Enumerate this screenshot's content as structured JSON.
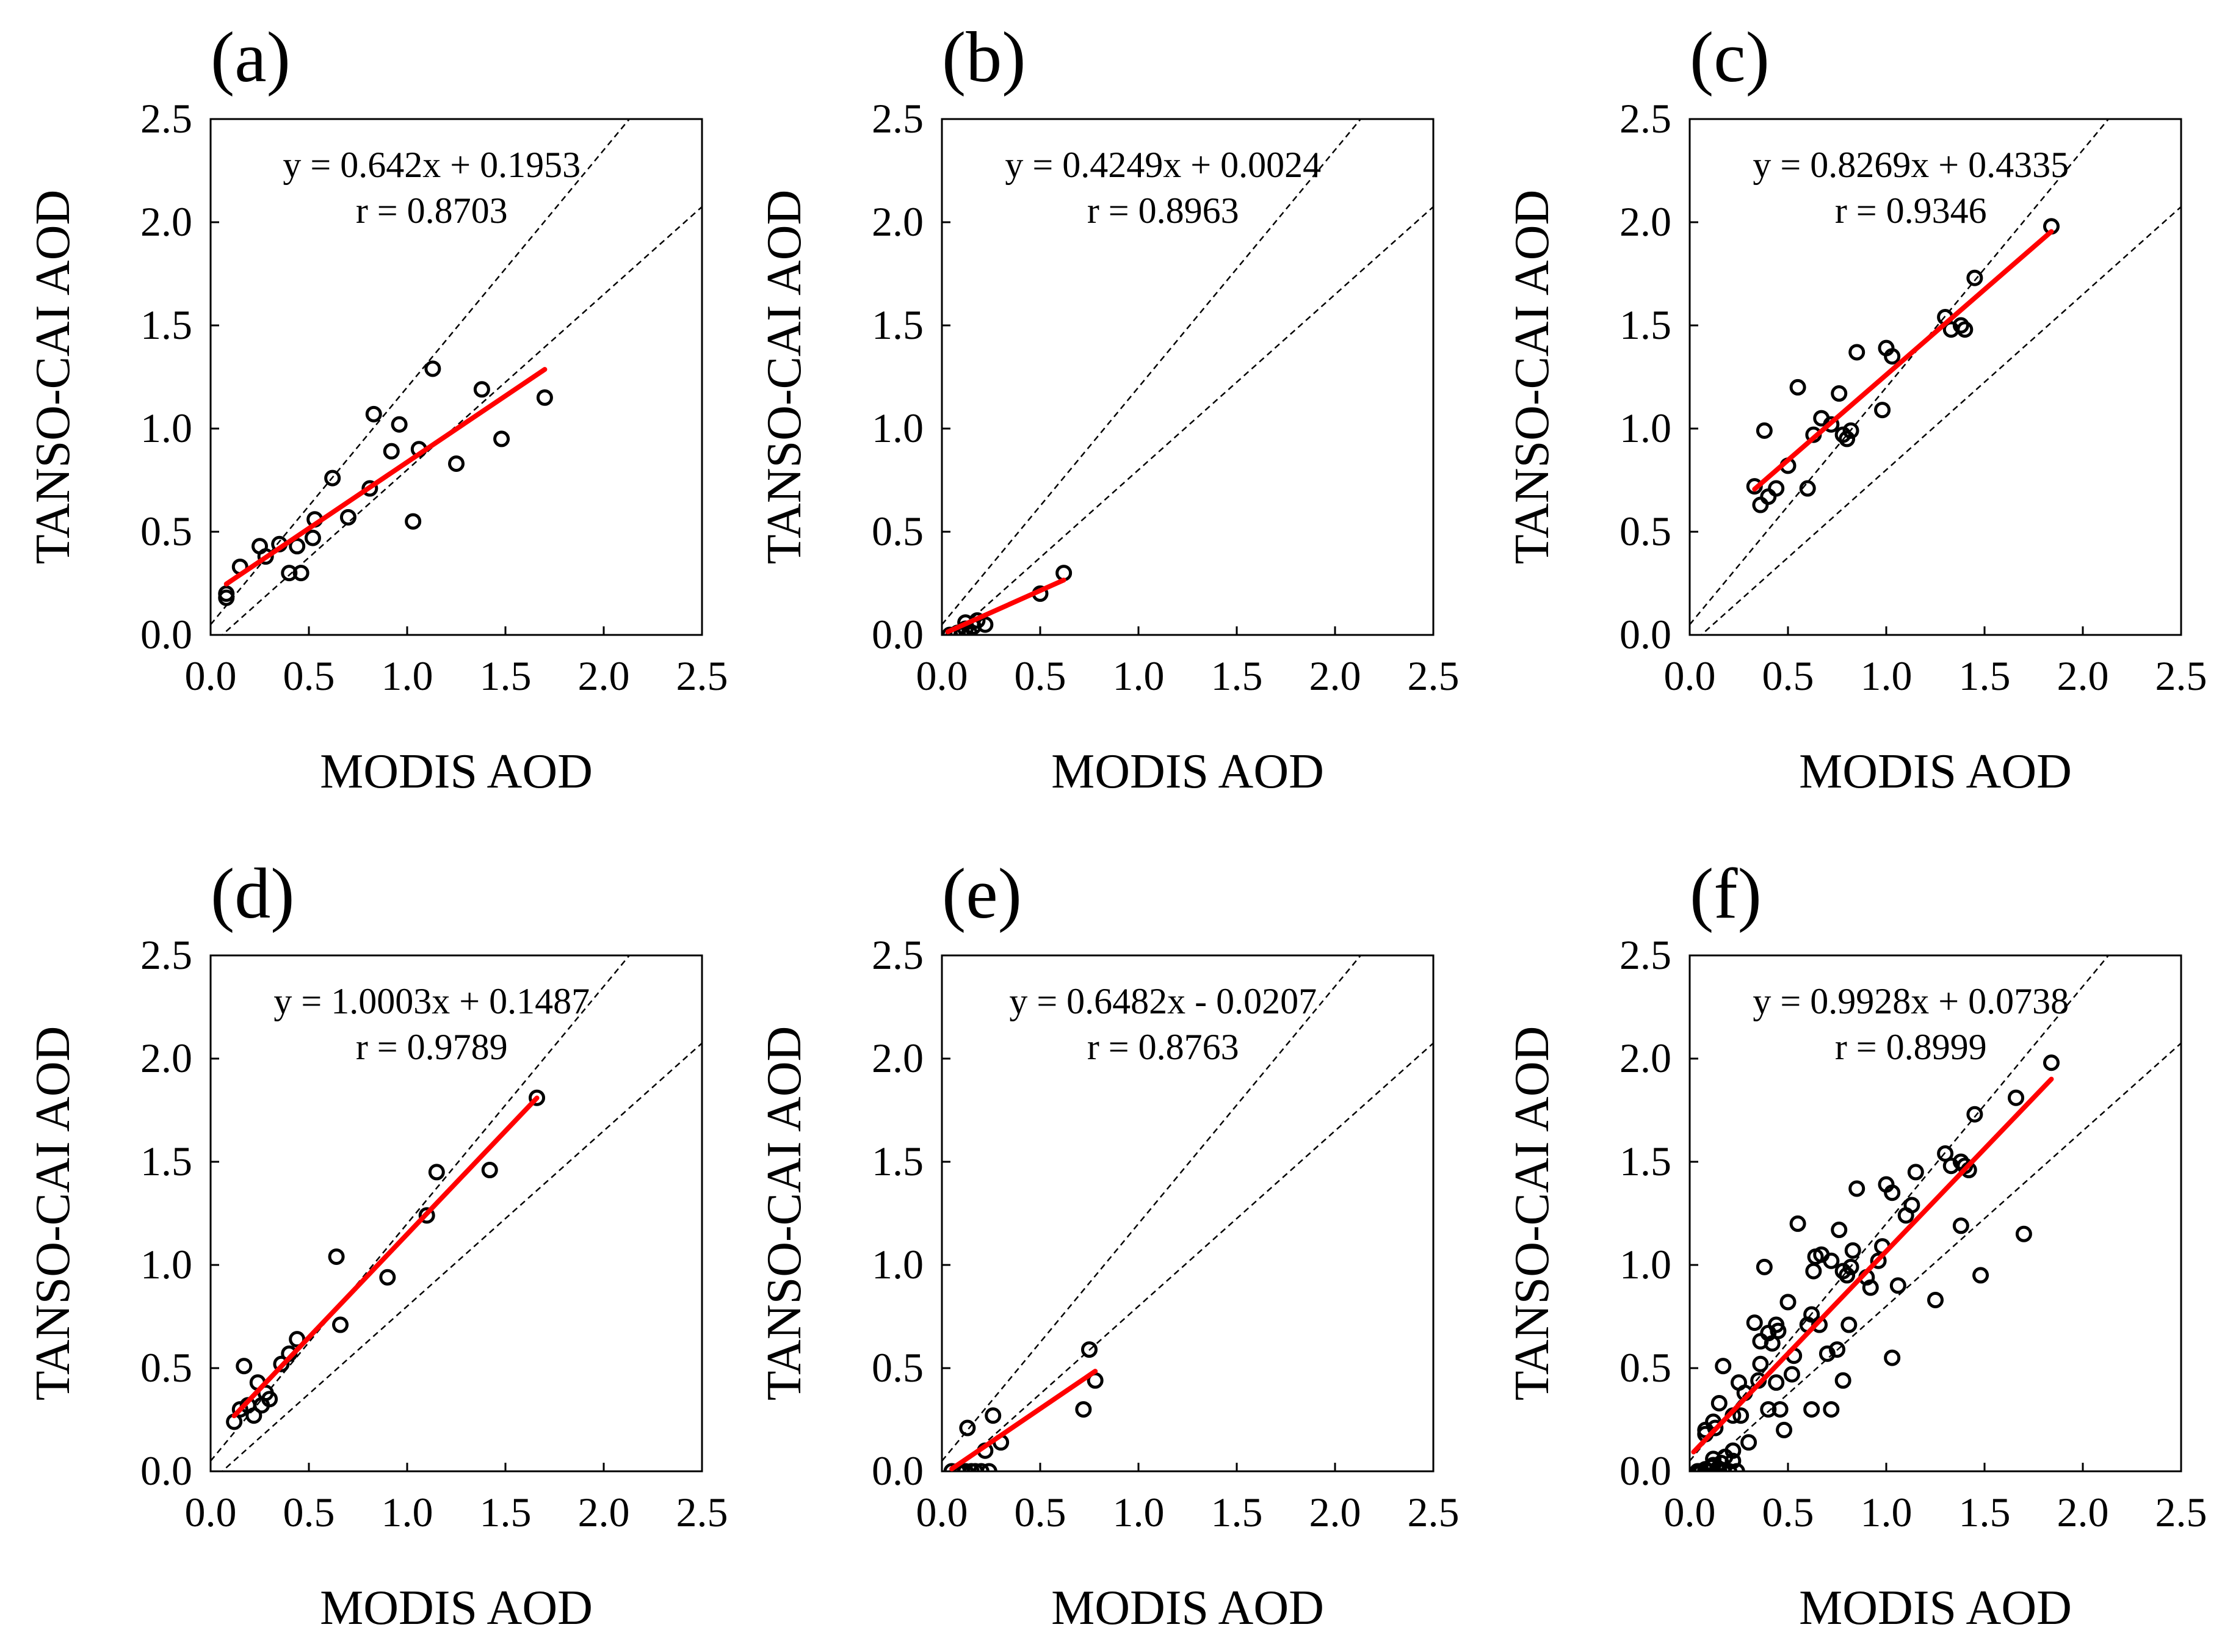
{
  "figure": {
    "xlabel": "MODIS AOD",
    "ylabel": "TANSO-CAI AOD",
    "tick_labels": [
      "0.0",
      "0.5",
      "1.0",
      "1.5",
      "2.0",
      "2.5"
    ],
    "colors": {
      "fit_line": "#ff0000",
      "points": "#000000",
      "reference_lines": "#000000",
      "axes": "#000000"
    }
  },
  "chart_data": [
    {
      "type": "scatter",
      "label": "(a)",
      "xlabel": "MODIS AOD",
      "ylabel": "TANSO-CAI AOD",
      "xlim": [
        0,
        2.5
      ],
      "ylim": [
        0,
        2.5
      ],
      "ticks": [
        0,
        0.5,
        1,
        1.5,
        2,
        2.5
      ],
      "equation": "y = 0.642x + 0.1953",
      "r_text": "r = 0.8703",
      "fit": {
        "slope": 0.642,
        "intercept": 0.1953,
        "x_range": [
          0.08,
          1.7
        ]
      },
      "envelope": [
        {
          "slope": 1.15,
          "intercept": 0.05
        },
        {
          "slope": 0.85,
          "intercept": -0.05
        }
      ],
      "points": [
        [
          0.08,
          0.2
        ],
        [
          0.08,
          0.18
        ],
        [
          0.15,
          0.33
        ],
        [
          0.25,
          0.43
        ],
        [
          0.28,
          0.38
        ],
        [
          0.35,
          0.44
        ],
        [
          0.4,
          0.3
        ],
        [
          0.44,
          0.43
        ],
        [
          0.46,
          0.3
        ],
        [
          0.52,
          0.47
        ],
        [
          0.53,
          0.56
        ],
        [
          0.62,
          0.76
        ],
        [
          0.7,
          0.57
        ],
        [
          0.81,
          0.71
        ],
        [
          0.83,
          1.07
        ],
        [
          0.92,
          0.89
        ],
        [
          0.96,
          1.02
        ],
        [
          1.03,
          0.55
        ],
        [
          1.06,
          0.9
        ],
        [
          1.13,
          1.29
        ],
        [
          1.25,
          0.83
        ],
        [
          1.38,
          1.19
        ],
        [
          1.48,
          0.95
        ],
        [
          1.7,
          1.15
        ]
      ]
    },
    {
      "type": "scatter",
      "label": "(b)",
      "xlabel": "MODIS AOD",
      "ylabel": "TANSO-CAI AOD",
      "xlim": [
        0,
        2.5
      ],
      "ylim": [
        0,
        2.5
      ],
      "ticks": [
        0,
        0.5,
        1,
        1.5,
        2,
        2.5
      ],
      "equation": "y = 0.4249x + 0.0024",
      "r_text": "r = 0.8963",
      "fit": {
        "slope": 0.4249,
        "intercept": 0.0024,
        "x_range": [
          0.03,
          0.62
        ]
      },
      "envelope": [
        {
          "slope": 1.15,
          "intercept": 0.05
        },
        {
          "slope": 0.85,
          "intercept": -0.05
        }
      ],
      "points": [
        [
          0.04,
          0.0
        ],
        [
          0.06,
          0.0
        ],
        [
          0.08,
          0.01
        ],
        [
          0.1,
          0.0
        ],
        [
          0.12,
          0.03
        ],
        [
          0.12,
          0.06
        ],
        [
          0.14,
          0.01
        ],
        [
          0.16,
          0.04
        ],
        [
          0.18,
          0.07
        ],
        [
          0.22,
          0.05
        ],
        [
          0.5,
          0.2
        ],
        [
          0.62,
          0.3
        ]
      ]
    },
    {
      "type": "scatter",
      "label": "(c)",
      "xlabel": "MODIS AOD",
      "ylabel": "TANSO-CAI AOD",
      "xlim": [
        0,
        2.5
      ],
      "ylim": [
        0,
        2.5
      ],
      "ticks": [
        0,
        0.5,
        1,
        1.5,
        2,
        2.5
      ],
      "equation": "y = 0.8269x + 0.4335",
      "r_text": "r = 0.9346",
      "fit": {
        "slope": 0.8269,
        "intercept": 0.4335,
        "x_range": [
          0.33,
          1.84
        ]
      },
      "envelope": [
        {
          "slope": 1.15,
          "intercept": 0.05
        },
        {
          "slope": 0.85,
          "intercept": -0.05
        }
      ],
      "points": [
        [
          0.33,
          0.72
        ],
        [
          0.36,
          0.63
        ],
        [
          0.38,
          0.99
        ],
        [
          0.4,
          0.67
        ],
        [
          0.44,
          0.71
        ],
        [
          0.5,
          0.82
        ],
        [
          0.55,
          1.2
        ],
        [
          0.6,
          0.71
        ],
        [
          0.63,
          0.97
        ],
        [
          0.67,
          1.05
        ],
        [
          0.72,
          1.02
        ],
        [
          0.76,
          1.17
        ],
        [
          0.78,
          0.97
        ],
        [
          0.8,
          0.95
        ],
        [
          0.82,
          0.99
        ],
        [
          0.85,
          1.37
        ],
        [
          0.98,
          1.09
        ],
        [
          1.0,
          1.39
        ],
        [
          1.03,
          1.35
        ],
        [
          1.3,
          1.54
        ],
        [
          1.33,
          1.48
        ],
        [
          1.38,
          1.5
        ],
        [
          1.4,
          1.48
        ],
        [
          1.45,
          1.73
        ],
        [
          1.84,
          1.98
        ]
      ]
    },
    {
      "type": "scatter",
      "label": "(d)",
      "xlabel": "MODIS AOD",
      "ylabel": "TANSO-CAI AOD",
      "xlim": [
        0,
        2.5
      ],
      "ylim": [
        0,
        2.5
      ],
      "ticks": [
        0,
        0.5,
        1,
        1.5,
        2,
        2.5
      ],
      "equation": "y = 1.0003x + 0.1487",
      "r_text": "r = 0.9789",
      "fit": {
        "slope": 1.0003,
        "intercept": 0.1487,
        "x_range": [
          0.12,
          1.66
        ]
      },
      "envelope": [
        {
          "slope": 1.15,
          "intercept": 0.05
        },
        {
          "slope": 0.85,
          "intercept": -0.05
        }
      ],
      "points": [
        [
          0.12,
          0.24
        ],
        [
          0.15,
          0.3
        ],
        [
          0.17,
          0.51
        ],
        [
          0.19,
          0.32
        ],
        [
          0.22,
          0.27
        ],
        [
          0.24,
          0.43
        ],
        [
          0.26,
          0.32
        ],
        [
          0.28,
          0.38
        ],
        [
          0.3,
          0.35
        ],
        [
          0.36,
          0.52
        ],
        [
          0.4,
          0.57
        ],
        [
          0.44,
          0.64
        ],
        [
          0.64,
          1.04
        ],
        [
          0.66,
          0.71
        ],
        [
          0.9,
          0.94
        ],
        [
          1.1,
          1.24
        ],
        [
          1.15,
          1.45
        ],
        [
          1.42,
          1.46
        ],
        [
          1.66,
          1.81
        ]
      ]
    },
    {
      "type": "scatter",
      "label": "(e)",
      "xlabel": "MODIS AOD",
      "ylabel": "TANSO-CAI AOD",
      "xlim": [
        0,
        2.5
      ],
      "ylim": [
        0,
        2.5
      ],
      "ticks": [
        0,
        0.5,
        1,
        1.5,
        2,
        2.5
      ],
      "equation": "y = 0.6482x - 0.0207",
      "r_text": "r = 0.8763",
      "fit": {
        "slope": 0.6482,
        "intercept": -0.0207,
        "x_range": [
          0.05,
          0.78
        ]
      },
      "envelope": [
        {
          "slope": 1.15,
          "intercept": 0.05
        },
        {
          "slope": 0.85,
          "intercept": -0.05
        }
      ],
      "points": [
        [
          0.05,
          0.0
        ],
        [
          0.08,
          0.0
        ],
        [
          0.1,
          0.0
        ],
        [
          0.12,
          0.0
        ],
        [
          0.13,
          0.21
        ],
        [
          0.15,
          0.0
        ],
        [
          0.17,
          0.0
        ],
        [
          0.2,
          0.0
        ],
        [
          0.22,
          0.1
        ],
        [
          0.24,
          0.0
        ],
        [
          0.26,
          0.27
        ],
        [
          0.3,
          0.14
        ],
        [
          0.72,
          0.3
        ],
        [
          0.75,
          0.59
        ],
        [
          0.78,
          0.44
        ]
      ]
    },
    {
      "type": "scatter",
      "label": "(f)",
      "xlabel": "MODIS AOD",
      "ylabel": "TANSO-CAI AOD",
      "xlim": [
        0,
        2.5
      ],
      "ylim": [
        0,
        2.5
      ],
      "ticks": [
        0,
        0.5,
        1,
        1.5,
        2,
        2.5
      ],
      "equation": "y = 0.9928x + 0.0738",
      "r_text": "r = 0.8999",
      "fit": {
        "slope": 0.9928,
        "intercept": 0.0738,
        "x_range": [
          0.02,
          1.84
        ]
      },
      "envelope": [
        {
          "slope": 1.15,
          "intercept": 0.05
        },
        {
          "slope": 0.85,
          "intercept": -0.05
        }
      ],
      "points": [
        [
          0.04,
          0.0
        ],
        [
          0.06,
          0.0
        ],
        [
          0.08,
          0.01
        ],
        [
          0.1,
          0.0
        ],
        [
          0.12,
          0.03
        ],
        [
          0.12,
          0.06
        ],
        [
          0.14,
          0.01
        ],
        [
          0.16,
          0.04
        ],
        [
          0.18,
          0.07
        ],
        [
          0.22,
          0.05
        ],
        [
          0.05,
          0.0
        ],
        [
          0.09,
          0.0
        ],
        [
          0.11,
          0.02
        ],
        [
          0.13,
          0.21
        ],
        [
          0.15,
          0.0
        ],
        [
          0.17,
          0.0
        ],
        [
          0.2,
          0.0
        ],
        [
          0.22,
          0.1
        ],
        [
          0.24,
          0.0
        ],
        [
          0.26,
          0.27
        ],
        [
          0.3,
          0.14
        ],
        [
          0.08,
          0.2
        ],
        [
          0.08,
          0.18
        ],
        [
          0.15,
          0.33
        ],
        [
          0.25,
          0.43
        ],
        [
          0.28,
          0.38
        ],
        [
          0.35,
          0.44
        ],
        [
          0.4,
          0.3
        ],
        [
          0.44,
          0.43
        ],
        [
          0.46,
          0.3
        ],
        [
          0.52,
          0.47
        ],
        [
          0.53,
          0.56
        ],
        [
          0.62,
          0.76
        ],
        [
          0.7,
          0.57
        ],
        [
          0.81,
          0.71
        ],
        [
          0.83,
          1.07
        ],
        [
          0.92,
          0.89
        ],
        [
          0.96,
          1.02
        ],
        [
          1.03,
          0.55
        ],
        [
          1.06,
          0.9
        ],
        [
          1.13,
          1.29
        ],
        [
          1.25,
          0.83
        ],
        [
          1.38,
          1.19
        ],
        [
          1.48,
          0.95
        ],
        [
          1.7,
          1.15
        ],
        [
          0.33,
          0.72
        ],
        [
          0.36,
          0.63
        ],
        [
          0.38,
          0.99
        ],
        [
          0.4,
          0.67
        ],
        [
          0.44,
          0.71
        ],
        [
          0.5,
          0.82
        ],
        [
          0.55,
          1.2
        ],
        [
          0.6,
          0.71
        ],
        [
          0.63,
          0.97
        ],
        [
          0.67,
          1.05
        ],
        [
          0.72,
          1.02
        ],
        [
          0.76,
          1.17
        ],
        [
          0.78,
          0.97
        ],
        [
          0.8,
          0.95
        ],
        [
          0.82,
          0.99
        ],
        [
          0.85,
          1.37
        ],
        [
          0.98,
          1.09
        ],
        [
          1.0,
          1.39
        ],
        [
          1.03,
          1.35
        ],
        [
          1.3,
          1.54
        ],
        [
          1.33,
          1.48
        ],
        [
          1.38,
          1.5
        ],
        [
          1.4,
          1.48
        ],
        [
          1.45,
          1.73
        ],
        [
          1.84,
          1.98
        ],
        [
          0.12,
          0.24
        ],
        [
          0.17,
          0.51
        ],
        [
          0.22,
          0.27
        ],
        [
          0.36,
          0.52
        ],
        [
          0.64,
          1.04
        ],
        [
          0.66,
          0.71
        ],
        [
          0.9,
          0.94
        ],
        [
          1.1,
          1.24
        ],
        [
          1.15,
          1.45
        ],
        [
          1.42,
          1.46
        ],
        [
          1.66,
          1.81
        ],
        [
          0.48,
          0.2
        ],
        [
          0.62,
          0.3
        ],
        [
          0.72,
          0.3
        ],
        [
          0.75,
          0.59
        ],
        [
          0.78,
          0.44
        ],
        [
          0.42,
          0.62
        ],
        [
          0.45,
          0.68
        ]
      ]
    }
  ]
}
